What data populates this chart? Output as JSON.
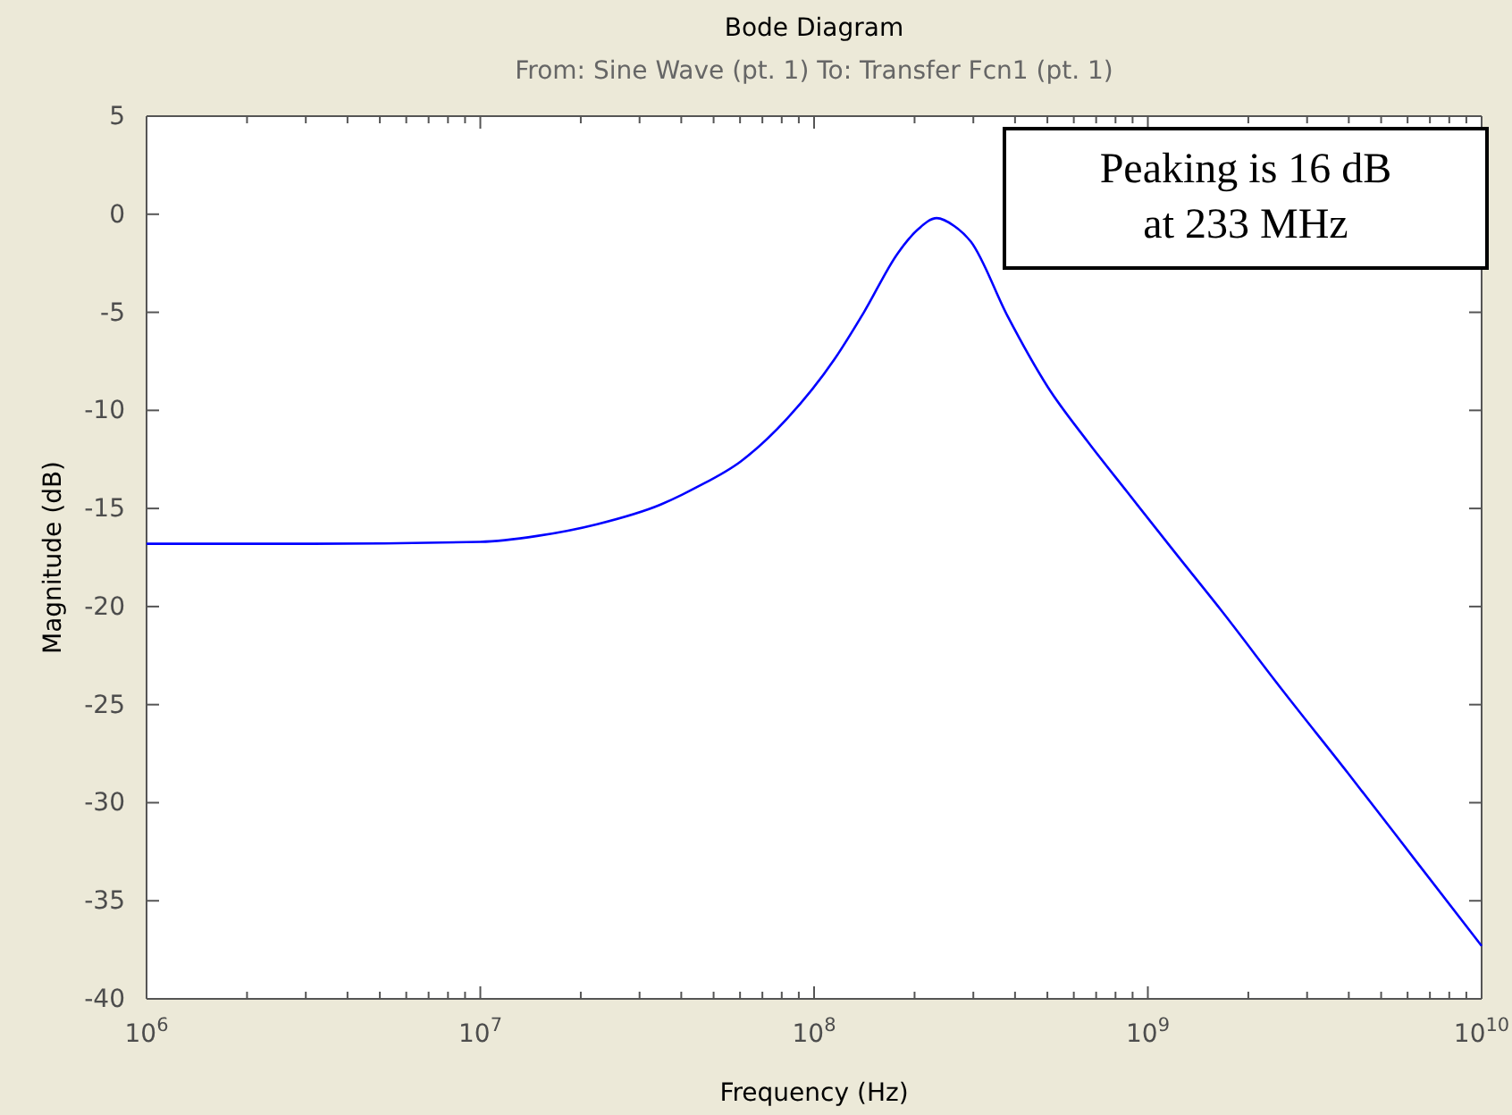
{
  "chart_data": {
    "type": "line",
    "title": "Bode Diagram",
    "subtitle": "From: Sine Wave (pt. 1)  To: Transfer Fcn1 (pt. 1)",
    "xlabel": "Frequency  (Hz)",
    "ylabel": "Magnitude (dB)",
    "log": "x",
    "grid": false,
    "marker": "none",
    "line_style": "solid",
    "x": [
      1000000.0,
      3160000.0,
      10000000.0,
      14800000.0,
      22400000.0,
      34700000.0,
      44700000.0,
      60300000.0,
      83200000.0,
      115000000.0,
      141000000.0,
      178000000.0,
      204000000.0,
      233000000.0,
      263000000.0,
      295000000.0,
      380000000.0,
      501000000.0,
      661000000.0,
      871000000.0,
      1200000000.0,
      1660000000.0,
      2540000000.0,
      3980000000.0,
      6310000000.0,
      10000000000.0
    ],
    "series": [
      {
        "color": "#0000ff",
        "values": [
          -16.8,
          -16.8,
          -16.7,
          -16.4,
          -15.8,
          -14.8,
          -13.9,
          -12.6,
          -10.4,
          -7.4,
          -5.0,
          -2.0,
          -0.8,
          -0.2,
          -0.6,
          -1.4,
          -5.2,
          -8.8,
          -11.6,
          -14.2,
          -17.2,
          -20.2,
          -24.3,
          -28.5,
          -32.9,
          -37.3
        ]
      }
    ],
    "xlim": [
      1000000.0,
      10000000000.0
    ],
    "xticks": [
      {
        "value": 1000000.0,
        "label": "10$^{6}$"
      },
      {
        "value": 2000000.0,
        "label": null
      },
      {
        "value": 3000000.0,
        "label": null
      },
      {
        "value": 4000000.0,
        "label": null
      },
      {
        "value": 5000000.0,
        "label": null
      },
      {
        "value": 6000000.0,
        "label": null
      },
      {
        "value": 7000000.0,
        "label": null
      },
      {
        "value": 8000000.0,
        "label": null
      },
      {
        "value": 9000000.0,
        "label": null
      },
      {
        "value": 10000000.0,
        "label": "10$^{7}$"
      },
      {
        "value": 20000000.0,
        "label": null
      },
      {
        "value": 30000000.0,
        "label": null
      },
      {
        "value": 40000000.0,
        "label": null
      },
      {
        "value": 50000000.0,
        "label": null
      },
      {
        "value": 60000000.0,
        "label": null
      },
      {
        "value": 70000000.0,
        "label": null
      },
      {
        "value": 80000000.0,
        "label": null
      },
      {
        "value": 90000000.0,
        "label": null
      },
      {
        "value": 100000000.0,
        "label": "10$^{8}$"
      },
      {
        "value": 200000000.0,
        "label": null
      },
      {
        "value": 300000000.0,
        "label": null
      },
      {
        "value": 400000000.0,
        "label": null
      },
      {
        "value": 500000000.0,
        "label": null
      },
      {
        "value": 600000000.0,
        "label": null
      },
      {
        "value": 700000000.0,
        "label": null
      },
      {
        "value": 800000000.0,
        "label": null
      },
      {
        "value": 900000000.0,
        "label": null
      },
      {
        "value": 1000000000.0,
        "label": "10$^{9}$"
      },
      {
        "value": 2000000000.0,
        "label": null
      },
      {
        "value": 3000000000.0,
        "label": null
      },
      {
        "value": 4000000000.0,
        "label": null
      },
      {
        "value": 5000000000.0,
        "label": null
      },
      {
        "value": 6000000000.0,
        "label": null
      },
      {
        "value": 7000000000.0,
        "label": null
      },
      {
        "value": 8000000000.0,
        "label": null
      },
      {
        "value": 9000000000.0,
        "label": null
      },
      {
        "value": 10000000000.0,
        "label": "10$^{10}$"
      }
    ],
    "ylim": [
      -40,
      5
    ],
    "yticks": [
      -40,
      -35,
      -30,
      -25,
      -20,
      -15,
      -10,
      -5,
      0,
      5
    ],
    "annotations": [
      "Peaking is 16 dB at 233 MHz"
    ]
  }
}
